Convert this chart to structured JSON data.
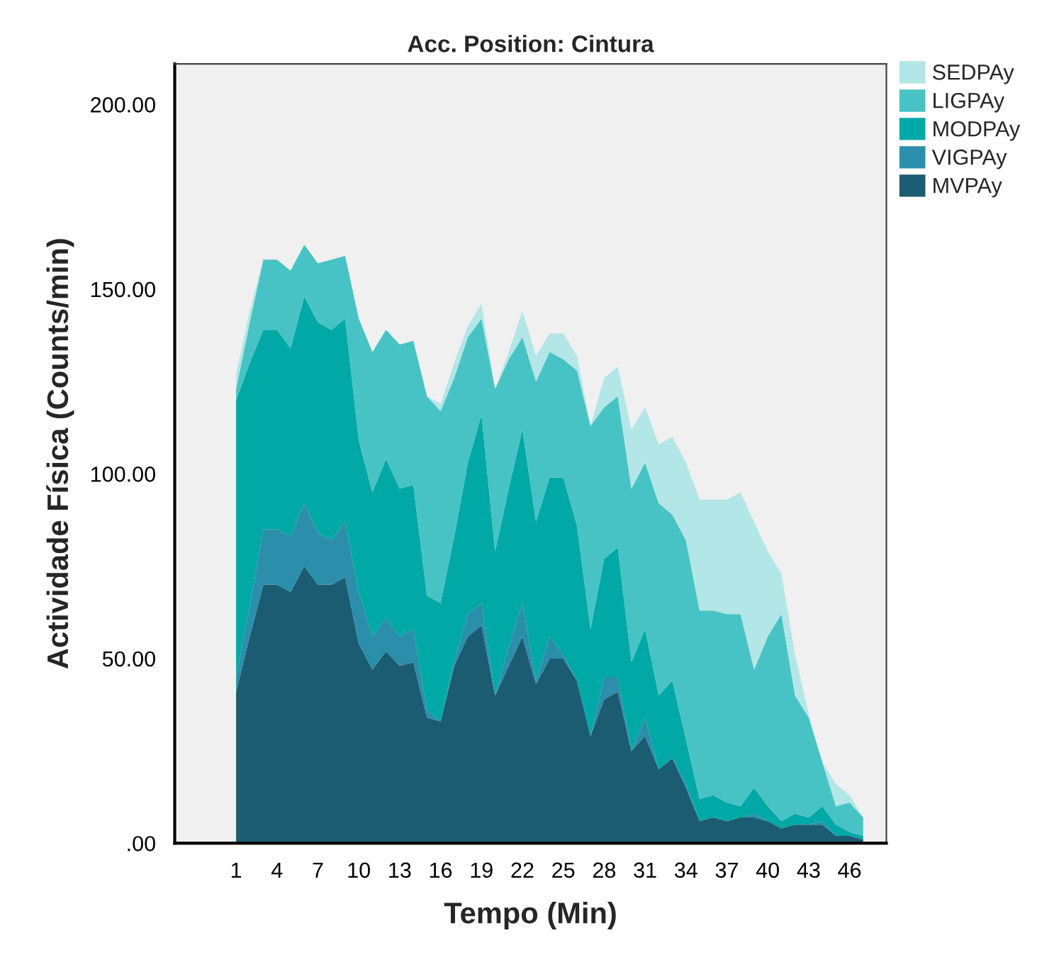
{
  "chart_data": {
    "type": "area",
    "stacked": true,
    "title": "Acc. Position: Cintura",
    "xlabel": "Tempo (Min)",
    "ylabel": "Actividade Física (Counts/min)",
    "x": [
      1,
      2,
      3,
      4,
      5,
      6,
      7,
      8,
      9,
      10,
      11,
      12,
      13,
      14,
      15,
      16,
      17,
      18,
      19,
      20,
      21,
      22,
      23,
      24,
      25,
      26,
      27,
      28,
      29,
      30,
      31,
      32,
      33,
      34,
      35,
      36,
      37,
      38,
      39,
      40,
      41,
      42,
      43,
      44,
      45,
      46,
      47
    ],
    "series": [
      {
        "name": "MVPAy",
        "color": "#1c5c72",
        "values": [
          41,
          56,
          70,
          70,
          68,
          75,
          70,
          70,
          72,
          54,
          47,
          52,
          48,
          49,
          34,
          33,
          48,
          56,
          59,
          40,
          48,
          56,
          43,
          50,
          50,
          44,
          29,
          39,
          41,
          25,
          29,
          20,
          23,
          15,
          6,
          7,
          6,
          7,
          7,
          6,
          4,
          5,
          5,
          5,
          2,
          2,
          1
        ]
      },
      {
        "name": "VIGPAy",
        "color": "#2b8fac",
        "values": [
          4,
          8,
          15,
          15,
          15,
          17,
          14,
          12,
          15,
          14,
          9,
          9,
          8,
          9,
          2,
          0,
          1,
          6,
          6,
          0,
          5,
          9,
          1,
          6,
          1,
          0,
          0,
          6,
          4,
          0,
          5,
          0,
          0,
          1,
          0,
          0,
          0,
          0,
          1,
          0,
          0,
          0,
          0,
          1,
          0,
          0,
          0
        ]
      },
      {
        "name": "MODPAy",
        "color": "#00a8a6",
        "values": [
          75,
          66,
          54,
          54,
          51,
          56,
          57,
          57,
          55,
          41,
          39,
          43,
          40,
          39,
          31,
          32,
          34,
          41,
          51,
          39,
          43,
          47,
          43,
          43,
          48,
          42,
          29,
          32,
          35,
          24,
          24,
          20,
          21,
          12,
          6,
          6,
          5,
          3,
          7,
          4,
          2,
          3,
          2,
          4,
          3,
          1,
          1
        ]
      },
      {
        "name": "LIGPAy",
        "color": "#48c3c5",
        "values": [
          3,
          11,
          19,
          19,
          21,
          14,
          16,
          19,
          17,
          33,
          38,
          35,
          39,
          39,
          54,
          52,
          43,
          34,
          26,
          44,
          35,
          25,
          38,
          34,
          32,
          42,
          55,
          41,
          41,
          47,
          45,
          52,
          45,
          54,
          51,
          50,
          51,
          52,
          32,
          46,
          56,
          32,
          27,
          12,
          5,
          8,
          5
        ]
      },
      {
        "name": "SEDPAy",
        "color": "#b3e6e6",
        "values": [
          4,
          3,
          0,
          0,
          0,
          0,
          0,
          0,
          0,
          0,
          0,
          0,
          0,
          0,
          0,
          2,
          4,
          3,
          4,
          0,
          2,
          7,
          7,
          5,
          7,
          4,
          0,
          8,
          8,
          16,
          15,
          16,
          21,
          21,
          30,
          30,
          31,
          33,
          40,
          23,
          11,
          11,
          1,
          0,
          6,
          2,
          0
        ]
      }
    ],
    "xlim": [
      -3.5,
      48.7
    ],
    "xticks": [
      1,
      4,
      7,
      10,
      13,
      16,
      19,
      22,
      25,
      28,
      31,
      34,
      37,
      40,
      43,
      46
    ],
    "ylim": [
      0,
      211
    ],
    "yticks": [
      {
        "value": 0,
        "label": ".00"
      },
      {
        "value": 50,
        "label": "50.00"
      },
      {
        "value": 100,
        "label": "100.00"
      },
      {
        "value": 150,
        "label": "150.00"
      },
      {
        "value": 200,
        "label": "200.00"
      }
    ],
    "legend": "top right",
    "grid": false
  }
}
